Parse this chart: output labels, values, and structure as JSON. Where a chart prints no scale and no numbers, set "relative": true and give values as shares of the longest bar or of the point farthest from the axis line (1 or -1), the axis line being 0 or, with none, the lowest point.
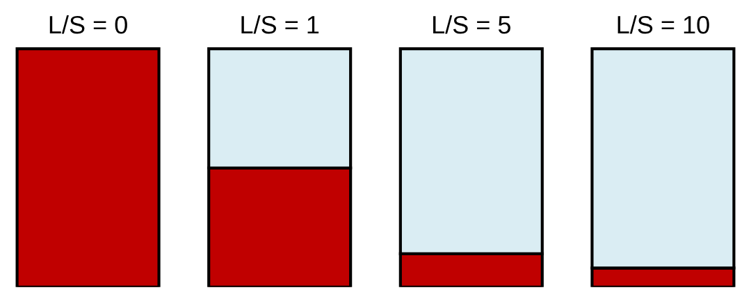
{
  "chart_data": {
    "type": "bar",
    "relative": true,
    "stacked": true,
    "categories": [
      "L/S = 0",
      "L/S = 1",
      "L/S = 5",
      "L/S = 10"
    ],
    "series": [
      {
        "color": "#c00000",
        "values": [
          1,
          0.5,
          0.14,
          0.08
        ]
      },
      {
        "color": "#daedf3",
        "values": [
          null,
          0.5,
          0.86,
          0.92
        ]
      }
    ],
    "grid": false,
    "legend": false
  }
}
